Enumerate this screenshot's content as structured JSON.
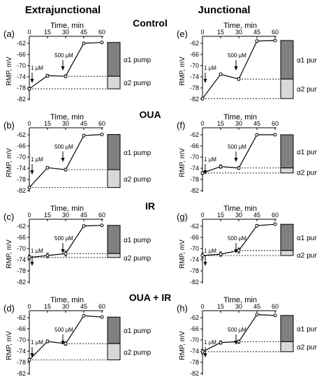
{
  "header": {
    "left_column_title": "Extrajunctional",
    "right_column_title": "Junctional"
  },
  "rows": [
    "Control",
    "OUA",
    "IR",
    "OUA + IR"
  ],
  "axes": {
    "x_title": "Time, min",
    "y_title": "RMP, mV",
    "x_ticks": [
      0,
      15,
      30,
      45,
      60
    ],
    "y_ticks": [
      -62,
      -66,
      -70,
      -74,
      -78,
      -82
    ],
    "y_range": [
      -82,
      -62
    ]
  },
  "annotations": {
    "dose_low": "1 µM",
    "dose_high": "500 µM",
    "alpha1": "α1 pump",
    "alpha2": "α2 pump"
  },
  "colors": {
    "alpha1_fill": "#808080",
    "alpha2_fill": "#d8d8d8",
    "line": "#000000"
  },
  "chart_data": [
    {
      "type": "line",
      "panel": "(a)",
      "column": "Extrajunctional",
      "condition": "Control",
      "x": [
        0,
        15,
        30,
        45,
        60
      ],
      "y": [
        -78.3,
        -73.6,
        -73.8,
        -62.0,
        -61.7
      ],
      "err": [
        0.5,
        0.5,
        0.5,
        0.4,
        0.3
      ],
      "alpha1_span": [
        -61.7,
        -73.8
      ],
      "alpha2_span": [
        -73.8,
        -78.3
      ]
    },
    {
      "type": "line",
      "panel": "(b)",
      "column": "Extrajunctional",
      "condition": "OUA",
      "x": [
        0,
        15,
        30,
        45,
        60
      ],
      "y": [
        -80.9,
        -73.8,
        -74.5,
        -62.3,
        -61.9
      ],
      "err": [
        0.4,
        0.4,
        0.5,
        0.4,
        0.3
      ],
      "alpha1_span": [
        -61.9,
        -74.5
      ],
      "alpha2_span": [
        -74.5,
        -80.9
      ]
    },
    {
      "type": "line",
      "panel": "(c)",
      "column": "Extrajunctional",
      "condition": "IR",
      "x": [
        0,
        15,
        30,
        45,
        60
      ],
      "y": [
        -73.2,
        -72.5,
        -71.8,
        -61.9,
        -61.7
      ],
      "err": [
        0.8,
        0.8,
        0.9,
        0.4,
        0.3
      ],
      "alpha1_span": [
        -61.7,
        -71.8
      ],
      "alpha2_span": [
        -71.8,
        -73.2
      ]
    },
    {
      "type": "line",
      "panel": "(d)",
      "column": "Extrajunctional",
      "condition": "OUA + IR",
      "x": [
        0,
        15,
        30,
        45,
        60
      ],
      "y": [
        -77.1,
        -70.5,
        -71.3,
        -61.3,
        -61.8
      ],
      "err": [
        0.5,
        0.5,
        0.6,
        0.3,
        0.3
      ],
      "alpha1_span": [
        -61.8,
        -71.3
      ],
      "alpha2_span": [
        -71.3,
        -77.1
      ]
    },
    {
      "type": "line",
      "panel": "(e)",
      "column": "Junctional",
      "condition": "Control",
      "x": [
        0,
        15,
        30,
        45,
        60
      ],
      "y": [
        -81.8,
        -73.1,
        -74.8,
        -61.2,
        -61.0
      ],
      "err": [
        0.4,
        0.4,
        0.5,
        0.4,
        0.3
      ],
      "alpha1_span": [
        -61.0,
        -74.8
      ],
      "alpha2_span": [
        -74.8,
        -81.8
      ]
    },
    {
      "type": "line",
      "panel": "(f)",
      "column": "Junctional",
      "condition": "OUA",
      "x": [
        0,
        15,
        30,
        45,
        60
      ],
      "y": [
        -75.7,
        -73.4,
        -73.9,
        -62.0,
        -62.0
      ],
      "err": [
        0.5,
        0.6,
        0.5,
        0.3,
        0.3
      ],
      "alpha1_span": [
        -62.0,
        -73.9
      ],
      "alpha2_span": [
        -73.9,
        -75.7
      ]
    },
    {
      "type": "line",
      "panel": "(g)",
      "column": "Junctional",
      "condition": "IR",
      "x": [
        0,
        15,
        30,
        45,
        60
      ],
      "y": [
        -72.5,
        -72.0,
        -70.7,
        -61.8,
        -61.3
      ],
      "err": [
        0.9,
        0.8,
        0.9,
        0.4,
        0.3
      ],
      "alpha1_span": [
        -61.3,
        -70.7
      ],
      "alpha2_span": [
        -70.7,
        -72.5
      ]
    },
    {
      "type": "line",
      "panel": "(h)",
      "column": "Junctional",
      "condition": "OUA + IR",
      "x": [
        0,
        15,
        30,
        45,
        60
      ],
      "y": [
        -74.2,
        -70.9,
        -70.6,
        -60.9,
        -61.2
      ],
      "err": [
        0.8,
        0.6,
        0.6,
        0.3,
        0.3
      ],
      "alpha1_span": [
        -61.2,
        -70.6
      ],
      "alpha2_span": [
        -70.6,
        -74.2
      ]
    }
  ]
}
